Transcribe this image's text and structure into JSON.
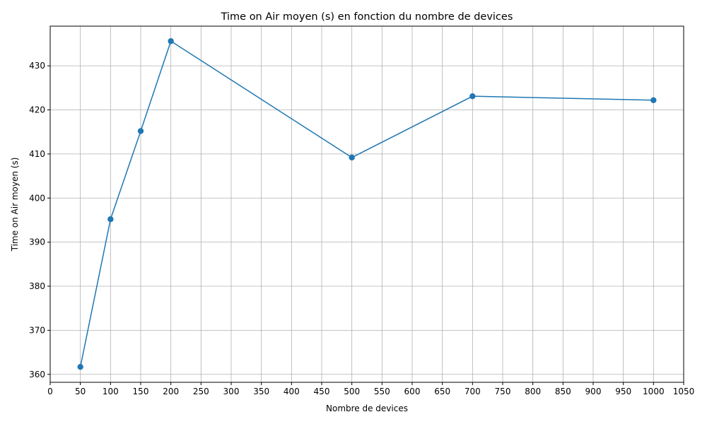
{
  "chart_data": {
    "type": "line",
    "title": "Time on Air moyen (s) en fonction du nombre de devices",
    "xlabel": "Nombre de devices",
    "ylabel": "Time on Air moyen (s)",
    "xlim": [
      0,
      1050
    ],
    "ylim": [
      358.2,
      439.0
    ],
    "x_ticks": [
      0,
      50,
      100,
      150,
      200,
      250,
      300,
      350,
      400,
      450,
      500,
      550,
      600,
      650,
      700,
      750,
      800,
      850,
      900,
      950,
      1000,
      1050
    ],
    "y_ticks": [
      360,
      370,
      380,
      390,
      400,
      410,
      420,
      430
    ],
    "grid": true,
    "legend": "none",
    "series": [
      {
        "color": "#1f77b4",
        "marker": "circle",
        "x": [
          50,
          100,
          150,
          200,
          500,
          700,
          1000
        ],
        "y": [
          361.7,
          395.2,
          415.2,
          435.6,
          409.2,
          423.1,
          422.2
        ]
      }
    ]
  }
}
